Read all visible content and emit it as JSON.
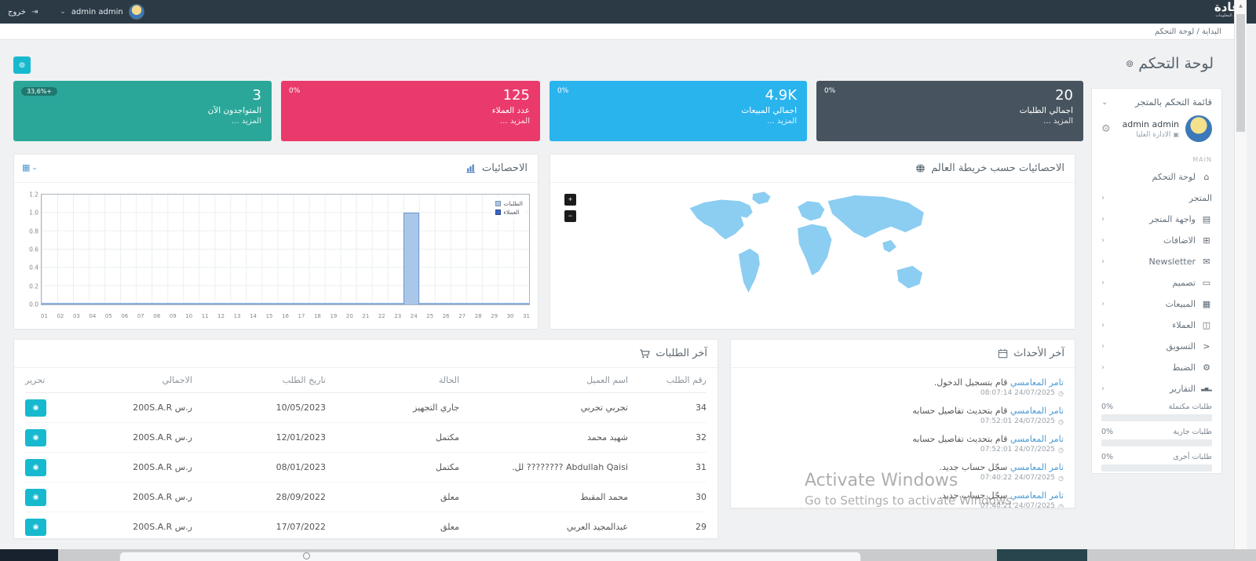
{
  "navbar": {
    "logo_title": "إفادة",
    "logo_subtitle": "لتقنية المعلومات",
    "user_name": "admin admin",
    "logout_label": "خروج"
  },
  "breadcrumb": "البداية / لوحة التحكم",
  "page_title": "لوحة التحكم",
  "stat_cards": [
    {
      "key": "total-orders",
      "delta": "0%",
      "value": "20",
      "label": "اجمالي الطلبات",
      "more": "المزيد ...",
      "color": "#47545f",
      "badge": false
    },
    {
      "key": "total-sales",
      "delta": "0%",
      "value": "4.9K",
      "label": "اجمالي المبيعات",
      "more": "المزيد ...",
      "color": "#2ab4ee",
      "badge": false
    },
    {
      "key": "customers-count",
      "delta": "0%",
      "value": "125",
      "label": "عدد العملاء",
      "more": "المزيد ...",
      "color": "#ea3a6b",
      "badge": false
    },
    {
      "key": "online-now",
      "delta": "33,6%+",
      "value": "3",
      "label": "المتواجدون الآن",
      "more": "المزيد ...",
      "color": "#2ba79a",
      "badge": true
    }
  ],
  "stats_panel": {
    "title": "الاحصائيات"
  },
  "map_panel": {
    "title": "الاحصائيات حسب خريطة العالم",
    "zoom_in_label": "+",
    "zoom_out_label": "−"
  },
  "chart_data": {
    "type": "bar",
    "title": "الاحصائيات",
    "categories": [
      "01",
      "02",
      "03",
      "04",
      "05",
      "06",
      "07",
      "08",
      "09",
      "10",
      "11",
      "12",
      "13",
      "14",
      "15",
      "16",
      "17",
      "18",
      "19",
      "20",
      "21",
      "22",
      "23",
      "24",
      "25",
      "26",
      "27",
      "28",
      "29",
      "30",
      "31"
    ],
    "series": [
      {
        "name": "الطلبات",
        "color": "#abc7e8",
        "values": [
          0,
          0,
          0,
          0,
          0,
          0,
          0,
          0,
          0,
          0,
          0,
          0,
          0,
          0,
          0,
          0,
          0,
          0,
          0,
          0,
          0,
          0,
          0,
          1,
          0,
          0,
          0,
          0,
          0,
          0,
          0
        ]
      },
      {
        "name": "العملاء",
        "color": "#3b66c4",
        "values": [
          0,
          0,
          0,
          0,
          0,
          0,
          0,
          0,
          0,
          0,
          0,
          0,
          0,
          0,
          0,
          0,
          0,
          0,
          0,
          0,
          0,
          0,
          0,
          0,
          0,
          0,
          0,
          0,
          0,
          0,
          0
        ]
      }
    ],
    "ylim": [
      0,
      1.2
    ],
    "yticks": [
      "0.0",
      "0.2",
      "0.4",
      "0.6",
      "0.8",
      "1.0",
      "1.2"
    ],
    "grid": true,
    "legend_position": "top-right"
  },
  "orders_panel": {
    "title": "آخر الطلبات",
    "columns": [
      "رقم الطلب",
      "اسم العميل",
      "الحالة",
      "تاريخ الطلب",
      "الاجمالي",
      "تحرير"
    ],
    "rows": [
      {
        "order_no": "34",
        "customer": "تجربي تجربي",
        "status": "جاري التجهيز",
        "date": "10/05/2023",
        "total": "200S.A.R ر.س"
      },
      {
        "order_no": "32",
        "customer": "شهيد محمد",
        "status": "مكتمل",
        "date": "12/01/2023",
        "total": "200S.A.R ر.س"
      },
      {
        "order_no": "31",
        "customer": "Abdullah Qaisi ???????? لل.",
        "status": "مكتمل",
        "date": "08/01/2023",
        "total": "200S.A.R ر.س"
      },
      {
        "order_no": "30",
        "customer": "محمد المقبط",
        "status": "معلق",
        "date": "28/09/2022",
        "total": "200S.A.R ر.س"
      },
      {
        "order_no": "29",
        "customer": "عبدالمجيد العربي",
        "status": "معلق",
        "date": "17/07/2022",
        "total": "200S.A.R ر.س"
      }
    ]
  },
  "events_panel": {
    "title": "آخر الأحداث",
    "events": [
      {
        "actor": "تامر المعامسي",
        "action": "قام بتسجيل الدخول.",
        "time": "08:07:14 24/07/2025"
      },
      {
        "actor": "تامر المعامسي",
        "action": "قام بتحديث تفاصيل حسابه",
        "time": "07:52:01 24/07/2025"
      },
      {
        "actor": "تامر المعامسي",
        "action": "قام بتحديث تفاصيل حسابه",
        "time": "07:52:01 24/07/2025"
      },
      {
        "actor": "تامر المعامسي",
        "action": "سجّل حساب جديد.",
        "time": "07:40:22 24/07/2025"
      },
      {
        "actor": "تامر المعامسي",
        "action": "سجّل حساب جديد.",
        "time": "07:40:21 24/07/2025"
      }
    ]
  },
  "sidebar": {
    "header": "قائمة التحكم بالمتجر",
    "user": {
      "name": "admin admin",
      "role": "الادارة العليا"
    },
    "section_label": "MAIN",
    "items": [
      {
        "key": "dashboard",
        "label": "لوحة التحكم",
        "icon": "home-icon",
        "expandable": false
      },
      {
        "key": "store",
        "label": "المتجر",
        "icon": "",
        "expandable": true
      },
      {
        "key": "storefront",
        "label": "واجهة المتجر",
        "icon": "layers-icon",
        "expandable": true
      },
      {
        "key": "addons",
        "label": "الاضافات",
        "icon": "plug-icon",
        "expandable": true
      },
      {
        "key": "newsletter",
        "label": "Newsletter",
        "icon": "envelope-icon",
        "expandable": true
      },
      {
        "key": "design",
        "label": "تصميم",
        "icon": "monitor-icon",
        "expandable": true
      },
      {
        "key": "sales",
        "label": "المبيعات",
        "icon": "cash-register-icon",
        "expandable": true
      },
      {
        "key": "customers",
        "label": "العملاء",
        "icon": "users-icon",
        "expandable": true
      },
      {
        "key": "marketing",
        "label": "التسويق",
        "icon": "share-icon",
        "expandable": true
      },
      {
        "key": "settings",
        "label": "الضبط",
        "icon": "gear-icon",
        "expandable": true
      },
      {
        "key": "reports",
        "label": "التقارير",
        "icon": "bar-chart-icon",
        "expandable": true
      }
    ],
    "progress": [
      {
        "label": "طلبات مكتملة",
        "value": "0%"
      },
      {
        "label": "طلبات جارية",
        "value": "0%"
      },
      {
        "label": "طلبات أخرى",
        "value": "0%"
      }
    ]
  },
  "watermark": {
    "line1": "Activate Windows",
    "line2": "Go to Settings to activate Windows."
  },
  "colors": {
    "accent_cyan": "#17b9ce",
    "link_blue": "#4a9bd5",
    "navbar": "#2c3a46",
    "bar_fill": "#abc7e8",
    "bar_border": "#6f98cc"
  }
}
